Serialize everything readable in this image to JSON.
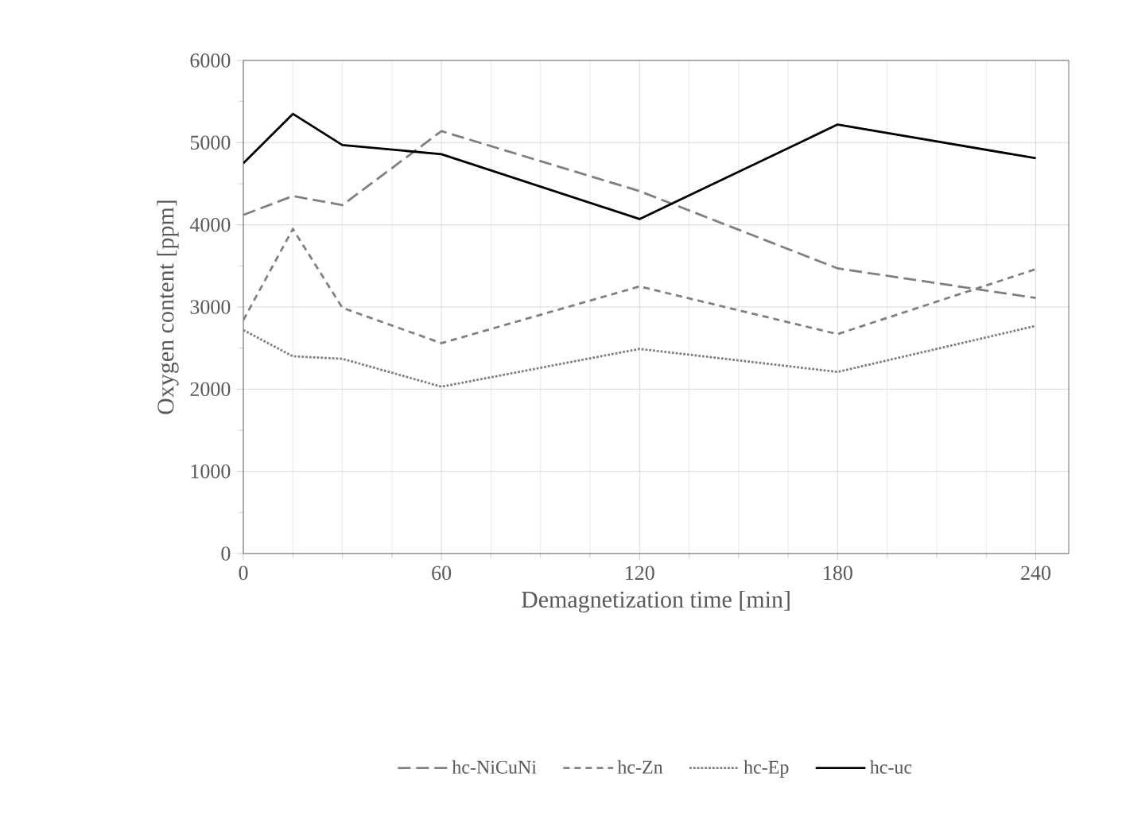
{
  "chart_data": {
    "type": "line",
    "xlabel": "Demagnetization time [min]",
    "ylabel": "Oxygen content [ppm]",
    "x": [
      0,
      15,
      30,
      60,
      120,
      180,
      240
    ],
    "series": [
      {
        "name": "hc-NiCuNi",
        "color": "#808080",
        "line_style": "dashed",
        "values": [
          4120,
          4350,
          4240,
          5140,
          4410,
          3470,
          3110
        ]
      },
      {
        "name": "hc-Zn",
        "color": "#808080",
        "line_style": "dashed",
        "values": [
          2840,
          3950,
          2990,
          2560,
          3250,
          2670,
          3460
        ]
      },
      {
        "name": "hc-Ep",
        "color": "#7f7f7f",
        "line_style": "dotted",
        "values": [
          2720,
          2400,
          2370,
          2030,
          2490,
          2210,
          2770
        ]
      },
      {
        "name": "hc-uc",
        "color": "#000000",
        "line_style": "solid",
        "values": [
          4750,
          5350,
          4970,
          4860,
          4070,
          5220,
          4810
        ]
      }
    ],
    "xlim": [
      0,
      250
    ],
    "ylim": [
      0,
      6000
    ],
    "xticks": [
      0,
      60,
      120,
      180,
      240
    ],
    "yticks": [
      0,
      1000,
      2000,
      3000,
      4000,
      5000,
      6000
    ],
    "grid": true,
    "legend": "bottom",
    "marker": "none"
  }
}
